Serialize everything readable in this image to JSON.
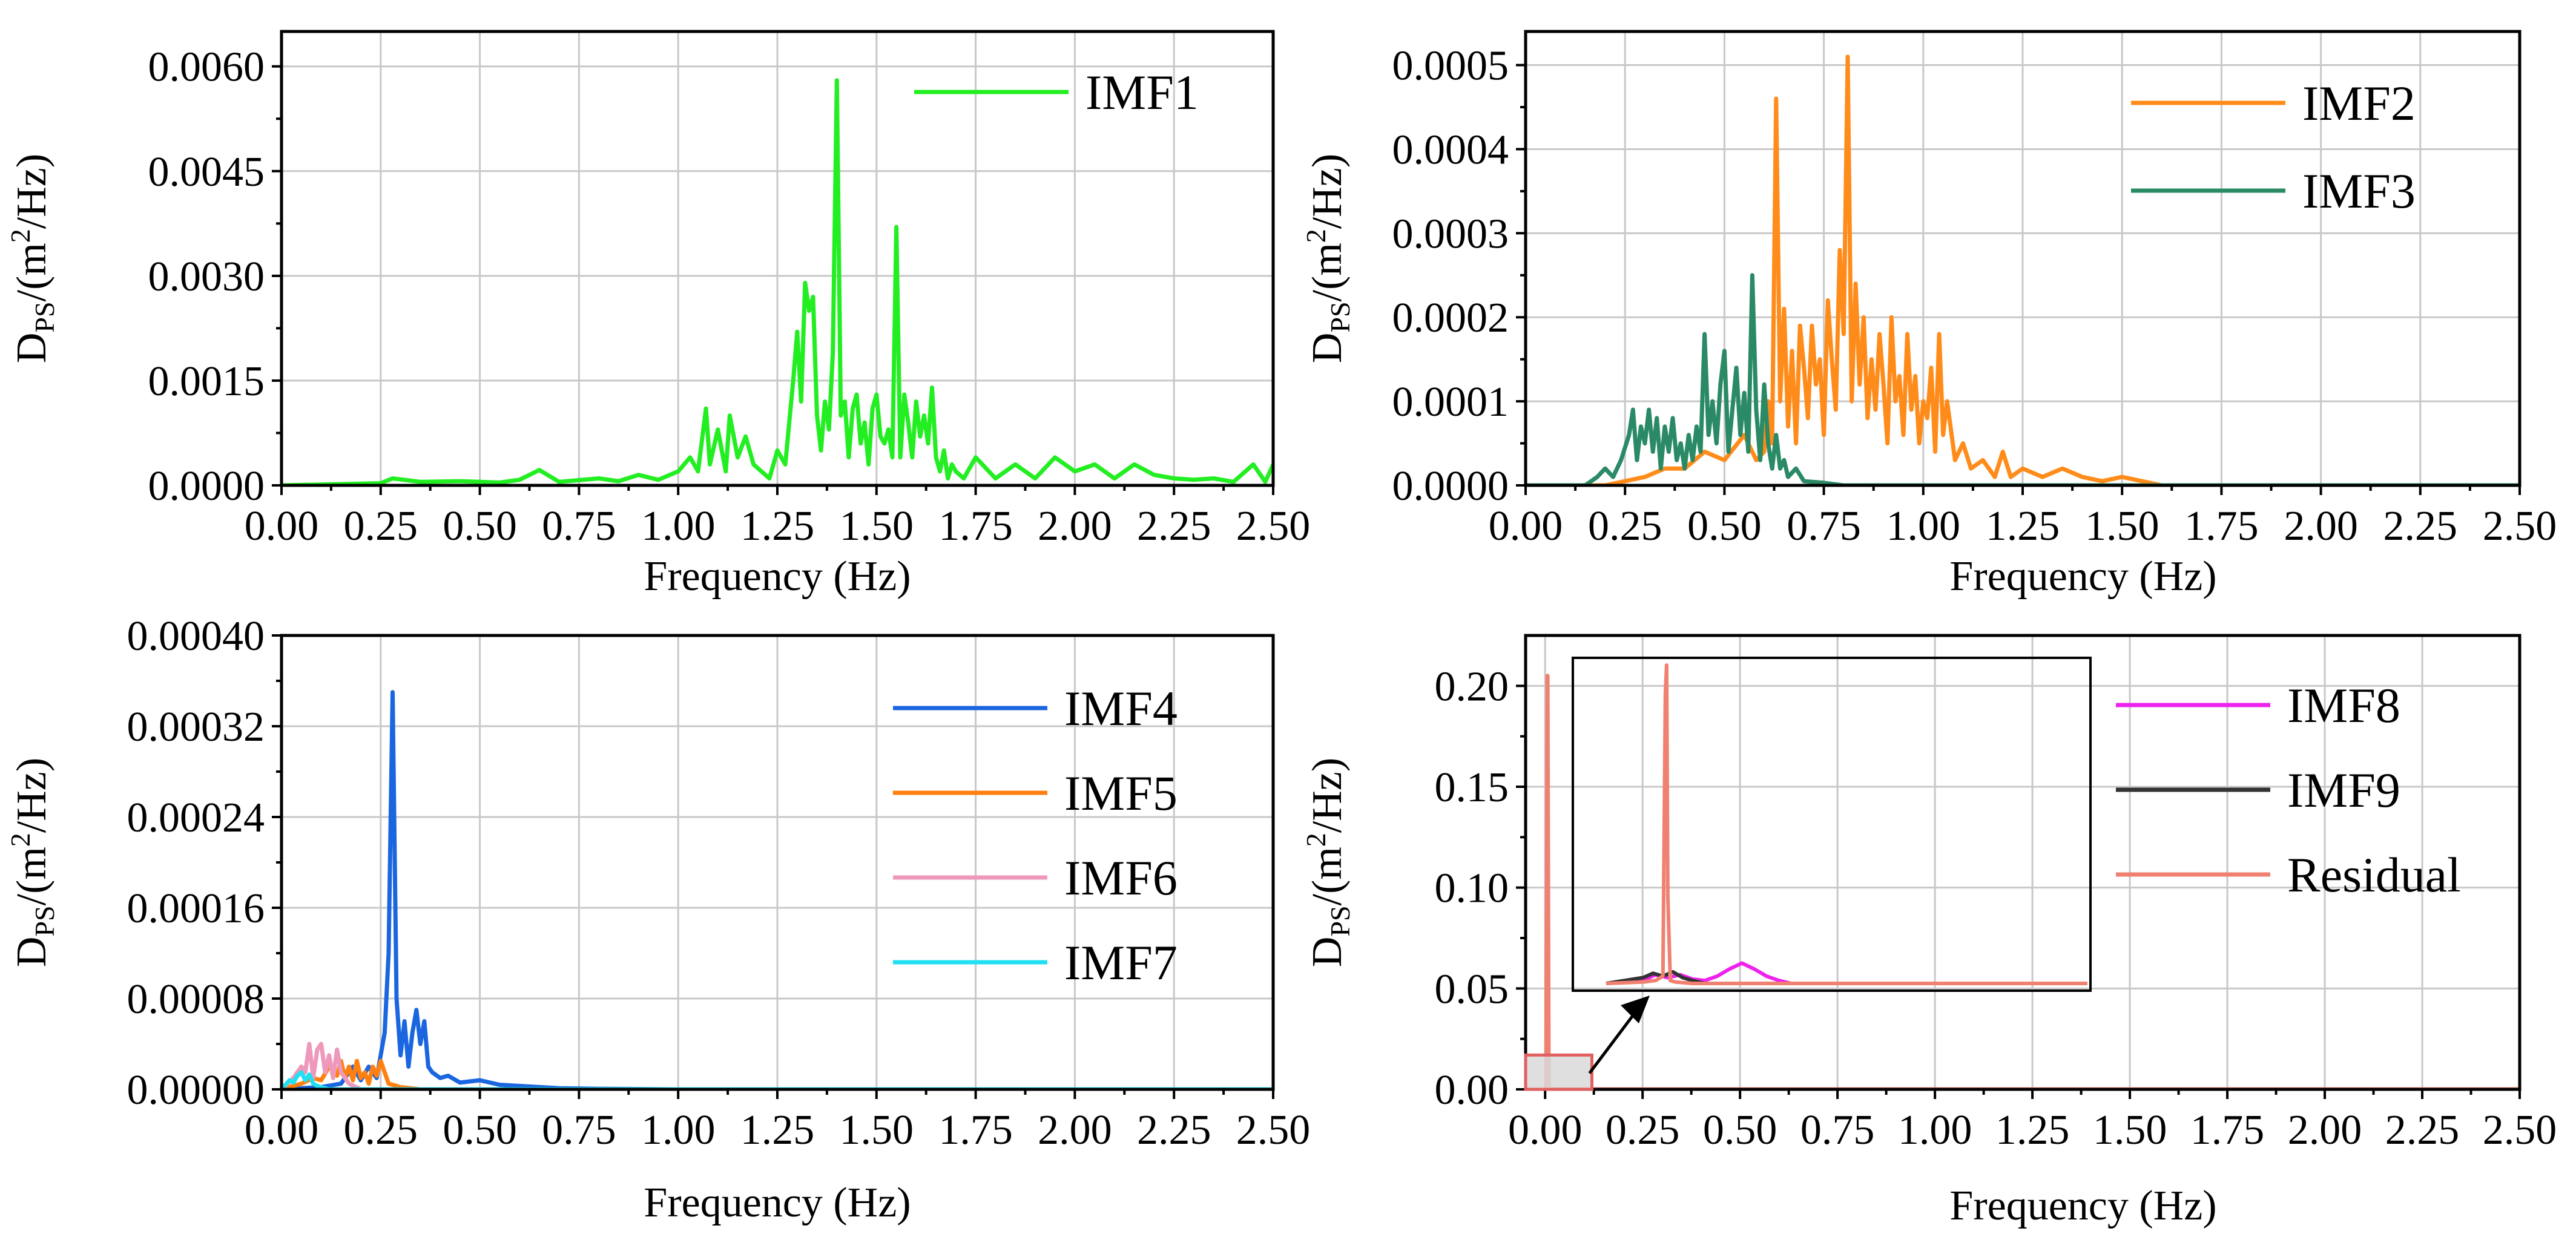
{
  "chart_data": [
    {
      "type": "line",
      "xlabel": "Frequency (Hz)",
      "ylabel": {
        "main": "D",
        "sub": "PS",
        "rest": "/(m",
        "sup": "2",
        "tail": "/Hz)"
      },
      "xlim": [
        0,
        2.5
      ],
      "ylim": [
        0,
        0.0065
      ],
      "xticks": [
        "0.00",
        "0.25",
        "0.50",
        "0.75",
        "1.00",
        "1.25",
        "1.50",
        "1.75",
        "2.00",
        "2.25",
        "2.50"
      ],
      "yticks": [
        "0.0000",
        "0.0015",
        "0.0030",
        "0.0045",
        "0.0060"
      ],
      "ytick_values": [
        0,
        0.0015,
        0.003,
        0.0045,
        0.006
      ],
      "grid": true,
      "legend_position": "top-right",
      "series": [
        {
          "name": "IMF1",
          "color": "#22ee22",
          "x": [
            0,
            0.25,
            0.28,
            0.35,
            0.45,
            0.55,
            0.6,
            0.65,
            0.7,
            0.8,
            0.85,
            0.9,
            0.95,
            1.0,
            1.03,
            1.05,
            1.07,
            1.08,
            1.1,
            1.12,
            1.13,
            1.15,
            1.17,
            1.19,
            1.2,
            1.23,
            1.25,
            1.27,
            1.29,
            1.3,
            1.31,
            1.32,
            1.33,
            1.34,
            1.35,
            1.36,
            1.37,
            1.38,
            1.39,
            1.4,
            1.41,
            1.42,
            1.43,
            1.44,
            1.45,
            1.46,
            1.47,
            1.48,
            1.49,
            1.5,
            1.51,
            1.52,
            1.53,
            1.54,
            1.55,
            1.56,
            1.57,
            1.58,
            1.59,
            1.6,
            1.61,
            1.62,
            1.63,
            1.64,
            1.65,
            1.66,
            1.67,
            1.68,
            1.69,
            1.7,
            1.72,
            1.75,
            1.8,
            1.85,
            1.9,
            1.95,
            2.0,
            2.05,
            2.1,
            2.15,
            2.2,
            2.25,
            2.3,
            2.35,
            2.4,
            2.45,
            2.48,
            2.5
          ],
          "y": [
            0,
            3e-05,
            0.0001,
            5e-05,
            6e-05,
            4e-05,
            8e-05,
            0.00022,
            5e-05,
            0.0001,
            6e-05,
            0.00015,
            8e-05,
            0.0002,
            0.0004,
            0.0002,
            0.0011,
            0.0003,
            0.0008,
            0.0002,
            0.001,
            0.0004,
            0.0007,
            0.0003,
            0.00025,
            0.0001,
            0.0005,
            0.0003,
            0.0015,
            0.0022,
            0.0012,
            0.0029,
            0.0025,
            0.0027,
            0.001,
            0.0005,
            0.0012,
            0.0008,
            0.0019,
            0.0058,
            0.001,
            0.0012,
            0.0004,
            0.0011,
            0.0013,
            0.0006,
            0.0009,
            0.0003,
            0.0011,
            0.0013,
            0.0007,
            0.0006,
            0.0008,
            0.0004,
            0.0037,
            0.0004,
            0.0013,
            0.0009,
            0.0004,
            0.0012,
            0.0007,
            0.001,
            0.0006,
            0.0014,
            0.0004,
            0.0002,
            0.0005,
            0.0001,
            0.0003,
            0.0002,
            0.0001,
            0.0004,
            0.0001,
            0.0003,
            0.0001,
            0.0004,
            0.0002,
            0.0003,
            0.0001,
            0.0003,
            0.00015,
            0.0001,
            8e-05,
            0.0001,
            5e-05,
            0.0003,
            5e-05,
            0.0003
          ]
        }
      ]
    },
    {
      "type": "line",
      "xlabel": "Frequency (Hz)",
      "ylabel": {
        "main": "D",
        "sub": "PS",
        "rest": "/(m",
        "sup": "2",
        "tail": "/Hz)"
      },
      "xlim": [
        0,
        2.5
      ],
      "ylim": [
        0,
        0.00054
      ],
      "xticks": [
        "0.00",
        "0.25",
        "0.50",
        "0.75",
        "1.00",
        "1.25",
        "1.50",
        "1.75",
        "2.00",
        "2.25",
        "2.50"
      ],
      "yticks": [
        "0.0000",
        "0.0001",
        "0.0002",
        "0.0003",
        "0.0004",
        "0.0005"
      ],
      "ytick_values": [
        0,
        0.0001,
        0.0002,
        0.0003,
        0.0004,
        0.0005
      ],
      "grid": true,
      "legend_position": "top-right",
      "series": [
        {
          "name": "IMF2",
          "color": "#ff8c1a",
          "x": [
            0,
            0.2,
            0.3,
            0.35,
            0.4,
            0.45,
            0.5,
            0.55,
            0.58,
            0.6,
            0.61,
            0.62,
            0.63,
            0.64,
            0.65,
            0.66,
            0.67,
            0.68,
            0.69,
            0.7,
            0.71,
            0.72,
            0.73,
            0.74,
            0.75,
            0.76,
            0.77,
            0.78,
            0.79,
            0.8,
            0.81,
            0.82,
            0.83,
            0.84,
            0.85,
            0.86,
            0.87,
            0.88,
            0.89,
            0.9,
            0.91,
            0.92,
            0.93,
            0.94,
            0.95,
            0.96,
            0.97,
            0.98,
            0.99,
            1.0,
            1.01,
            1.02,
            1.03,
            1.04,
            1.05,
            1.06,
            1.08,
            1.1,
            1.12,
            1.15,
            1.18,
            1.2,
            1.22,
            1.25,
            1.3,
            1.35,
            1.4,
            1.45,
            1.5,
            1.6,
            2.5
          ],
          "y": [
            0,
            0,
            1e-05,
            2e-05,
            2e-05,
            4e-05,
            3e-05,
            6e-05,
            3e-05,
            4e-05,
            0.0001,
            5e-05,
            0.00046,
            0.0001,
            0.00021,
            7e-05,
            0.00016,
            5e-05,
            0.00019,
            0.00014,
            8e-05,
            0.00019,
            0.00012,
            0.00015,
            6e-05,
            0.00022,
            0.00015,
            9e-05,
            0.00028,
            0.00018,
            0.00051,
            0.0001,
            0.00024,
            0.00012,
            0.0002,
            8e-05,
            0.00015,
            9e-05,
            0.00018,
            0.00012,
            5e-05,
            0.0002,
            0.0001,
            0.00013,
            6e-05,
            0.00018,
            9e-05,
            0.00013,
            5e-05,
            0.0001,
            8e-05,
            0.00014,
            4e-05,
            0.00018,
            6e-05,
            0.0001,
            3e-05,
            5e-05,
            2e-05,
            3e-05,
            1e-05,
            4e-05,
            1e-05,
            2e-05,
            1e-05,
            2e-05,
            1e-05,
            5e-06,
            1e-05,
            0,
            0
          ]
        },
        {
          "name": "IMF3",
          "color": "#2a8a66",
          "x": [
            0,
            0.15,
            0.18,
            0.2,
            0.22,
            0.24,
            0.26,
            0.27,
            0.28,
            0.29,
            0.3,
            0.31,
            0.32,
            0.33,
            0.34,
            0.35,
            0.36,
            0.37,
            0.38,
            0.39,
            0.4,
            0.41,
            0.42,
            0.43,
            0.44,
            0.45,
            0.46,
            0.47,
            0.48,
            0.49,
            0.5,
            0.51,
            0.52,
            0.53,
            0.54,
            0.55,
            0.56,
            0.57,
            0.58,
            0.59,
            0.6,
            0.61,
            0.62,
            0.63,
            0.64,
            0.65,
            0.66,
            0.68,
            0.7,
            0.75,
            0.8,
            1.0,
            2.5
          ],
          "y": [
            0,
            0,
            1e-05,
            2e-05,
            1e-05,
            3e-05,
            6e-05,
            9e-05,
            3e-05,
            7e-05,
            5e-05,
            9e-05,
            4e-05,
            8e-05,
            2e-05,
            7e-05,
            4e-05,
            8e-05,
            3e-05,
            5e-05,
            2e-05,
            6e-05,
            3e-05,
            7e-05,
            4e-05,
            0.00018,
            6e-05,
            0.0001,
            5e-05,
            0.00012,
            0.00016,
            4e-05,
            9e-05,
            0.00014,
            6e-05,
            0.00011,
            4e-05,
            0.00025,
            9e-05,
            3e-05,
            0.00012,
            5e-05,
            2e-05,
            6e-05,
            2e-05,
            3e-05,
            1e-05,
            2e-05,
            5e-06,
            3e-06,
            0,
            0,
            0
          ]
        }
      ]
    },
    {
      "type": "line",
      "xlabel": "Frequency (Hz)",
      "ylabel": {
        "main": "D",
        "sub": "PS",
        "rest": "/(m",
        "sup": "2",
        "tail": "/Hz)"
      },
      "xlim": [
        0,
        2.5
      ],
      "ylim": [
        0,
        0.0004
      ],
      "xticks": [
        "0.00",
        "0.25",
        "0.50",
        "0.75",
        "1.00",
        "1.25",
        "1.50",
        "1.75",
        "2.00",
        "2.25",
        "2.50"
      ],
      "yticks": [
        "0.00000",
        "0.00008",
        "0.00016",
        "0.00024",
        "0.00032",
        "0.00040"
      ],
      "ytick_values": [
        0,
        8e-05,
        0.00016,
        0.00024,
        0.00032,
        0.0004
      ],
      "grid": true,
      "legend_position": "top-right",
      "series": [
        {
          "name": "IMF4",
          "color": "#1a66e0",
          "x": [
            0,
            0.1,
            0.15,
            0.18,
            0.2,
            0.22,
            0.24,
            0.25,
            0.26,
            0.27,
            0.28,
            0.29,
            0.3,
            0.31,
            0.32,
            0.33,
            0.34,
            0.35,
            0.36,
            0.37,
            0.38,
            0.4,
            0.42,
            0.45,
            0.5,
            0.55,
            0.6,
            0.7,
            0.8,
            1.0,
            2.5
          ],
          "y": [
            0,
            2e-06,
            5e-06,
            2e-05,
            8e-06,
            2e-05,
            1e-05,
            3e-05,
            5e-05,
            0.00012,
            0.00035,
            8e-05,
            3e-05,
            6e-05,
            2e-05,
            5e-05,
            7e-05,
            4e-05,
            6e-05,
            2e-05,
            1.5e-05,
            1e-05,
            1.2e-05,
            6e-06,
            8e-06,
            4e-06,
            3e-06,
            1e-06,
            5e-07,
            0,
            0
          ]
        },
        {
          "name": "IMF5",
          "color": "#ff8010",
          "x": [
            0,
            0.05,
            0.08,
            0.1,
            0.12,
            0.14,
            0.15,
            0.16,
            0.17,
            0.18,
            0.19,
            0.2,
            0.21,
            0.22,
            0.23,
            0.24,
            0.25,
            0.26,
            0.27,
            0.3,
            0.35,
            2.5
          ],
          "y": [
            0,
            5e-06,
            1e-05,
            8e-06,
            2e-05,
            1.2e-05,
            2.5e-05,
            1e-05,
            2e-05,
            8e-06,
            2.5e-05,
            1e-05,
            1.5e-05,
            5e-06,
            2e-05,
            1.2e-05,
            2.5e-05,
            1.5e-05,
            5e-06,
            2e-06,
            0,
            0
          ]
        },
        {
          "name": "IMF6",
          "color": "#ee99bb",
          "x": [
            0,
            0.03,
            0.05,
            0.06,
            0.07,
            0.08,
            0.09,
            0.1,
            0.11,
            0.12,
            0.13,
            0.14,
            0.15,
            0.17,
            0.2,
            2.5
          ],
          "y": [
            0,
            1e-05,
            2e-05,
            1.5e-05,
            4e-05,
            1e-05,
            3.5e-05,
            4e-05,
            1.5e-05,
            3e-05,
            1e-05,
            3.5e-05,
            1.5e-05,
            5e-06,
            0,
            0
          ]
        },
        {
          "name": "IMF7",
          "color": "#22e0f0",
          "x": [
            0,
            0.01,
            0.02,
            0.03,
            0.04,
            0.05,
            0.06,
            0.07,
            0.08,
            0.09,
            0.1,
            0.12,
            2.5
          ],
          "y": [
            0,
            4e-06,
            8e-06,
            6e-06,
            1.2e-05,
            1.5e-05,
            8e-06,
            1.3e-05,
            5e-06,
            3e-06,
            2e-06,
            0,
            0
          ]
        }
      ]
    },
    {
      "type": "line",
      "xlabel": "Frequency (Hz)",
      "ylabel": {
        "main": "D",
        "sub": "PS",
        "rest": "/(m",
        "sup": "2",
        "tail": "/Hz)"
      },
      "xlim": [
        -0.05,
        2.5
      ],
      "ylim": [
        0,
        0.225
      ],
      "xticks": [
        "0.00",
        "0.25",
        "0.50",
        "0.75",
        "1.00",
        "1.25",
        "1.50",
        "1.75",
        "2.00",
        "2.25",
        "2.50"
      ],
      "yticks": [
        "0.00",
        "0.05",
        "0.10",
        "0.15",
        "0.20"
      ],
      "ytick_values": [
        0,
        0.05,
        0.1,
        0.15,
        0.2
      ],
      "grid": true,
      "legend_position": "top-right",
      "series": [
        {
          "name": "IMF8",
          "color": "#ee22ee",
          "x": [
            0,
            0.005,
            0.01,
            2.5
          ],
          "y": [
            0,
            0.0001,
            0,
            0
          ]
        },
        {
          "name": "IMF9",
          "color": "#333333",
          "x": [
            0,
            0.003,
            0.006,
            2.5
          ],
          "y": [
            0,
            0.0002,
            0,
            0
          ]
        },
        {
          "name": "Residual",
          "color": "#f08070",
          "x": [
            0,
            0.003,
            0.006,
            0.009,
            2.5
          ],
          "y": [
            0,
            0.002,
            0.205,
            0,
            0
          ]
        }
      ],
      "inset": {
        "source_xlim": [
          -0.05,
          0.12
        ],
        "source_ylim": [
          0,
          0.017
        ],
        "xlim": [
          -0.015,
          0.18
        ],
        "ylim": [
          0,
          0.0022
        ],
        "series": [
          {
            "name": "IMF8",
            "color": "#ee22ee",
            "x": [
              -0.015,
              0.0,
              0.005,
              0.01,
              0.015,
              0.02,
              0.025,
              0.03,
              0.035,
              0.04,
              0.045,
              0.05,
              0.055,
              0.06,
              0.18
            ],
            "y": [
              0,
              2e-05,
              6e-05,
              4e-05,
              6e-05,
              3e-05,
              2e-05,
              5e-05,
              0.0001,
              0.00014,
              0.0001,
              5e-05,
              2e-05,
              0,
              0
            ]
          },
          {
            "name": "IMF9",
            "color": "#333333",
            "x": [
              -0.015,
              0.0,
              0.004,
              0.008,
              0.012,
              0.016,
              0.02,
              0.025,
              0.18
            ],
            "y": [
              0,
              4e-05,
              7e-05,
              5e-05,
              8e-05,
              4e-05,
              2e-05,
              0,
              0
            ]
          },
          {
            "name": "Residual",
            "color": "#f08070",
            "x": [
              -0.015,
              0.0,
              0.005,
              0.008,
              0.009,
              0.0095,
              0.01,
              0.011,
              0.013,
              0.02,
              0.18
            ],
            "y": [
              0,
              1e-05,
              2e-05,
              5e-05,
              0.002,
              0.0022,
              0.0006,
              2e-05,
              1e-05,
              0,
              0
            ]
          }
        ]
      }
    }
  ]
}
